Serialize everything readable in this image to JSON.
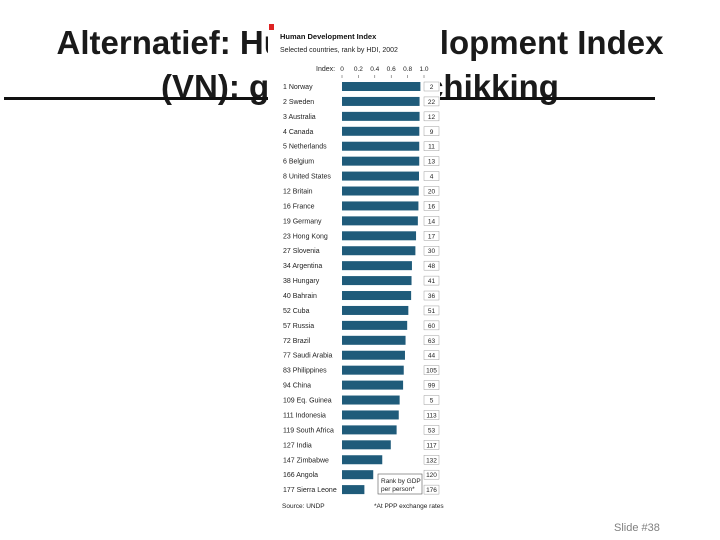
{
  "slide": {
    "title_line1": "Alternatief: Human Development Index",
    "title_line2": "(VN): geen rangschikking",
    "slide_number": "Slide #38"
  },
  "chart_data": {
    "type": "bar",
    "title": "Human Development Index",
    "subtitle": "Selected countries, rank by HDI, 2002",
    "axis_label": "Index:",
    "xlim": [
      0,
      1.0
    ],
    "ticks": [
      "0",
      "0.2",
      "0.4",
      "0.6",
      "0.8",
      "1.0"
    ],
    "categories": [
      "1 Norway",
      "2 Sweden",
      "3 Australia",
      "4 Canada",
      "5 Netherlands",
      "6 Belgium",
      "8 United States",
      "12 Britain",
      "16 France",
      "19 Germany",
      "23 Hong Kong",
      "27 Slovenia",
      "34 Argentina",
      "38 Hungary",
      "40 Bahrain",
      "52 Cuba",
      "57 Russia",
      "72 Brazil",
      "77 Saudi Arabia",
      "83 Philippines",
      "94 China",
      "109 Eq. Guinea",
      "111 Indonesia",
      "119 South Africa",
      "127 India",
      "147 Zimbabwe",
      "166 Angola",
      "177 Sierra Leone"
    ],
    "values": [
      0.956,
      0.946,
      0.946,
      0.943,
      0.942,
      0.942,
      0.939,
      0.936,
      0.932,
      0.925,
      0.903,
      0.895,
      0.853,
      0.848,
      0.843,
      0.809,
      0.795,
      0.775,
      0.768,
      0.753,
      0.745,
      0.703,
      0.692,
      0.666,
      0.595,
      0.491,
      0.381,
      0.273
    ],
    "gdp_rank_label": [
      "2",
      "22",
      "12",
      "9",
      "11",
      "13",
      "4",
      "20",
      "16",
      "14",
      "17",
      "30",
      "48",
      "41",
      "36",
      "51",
      "60",
      "63",
      "44",
      "105",
      "99",
      "5",
      "113",
      "53",
      "117",
      "132",
      "120",
      "176"
    ],
    "inset_label": "Rank by GDP per person*",
    "source": "Source: UNDP",
    "footnote": "*At PPP exchange rates",
    "bar_color": "#1f5b7a"
  }
}
